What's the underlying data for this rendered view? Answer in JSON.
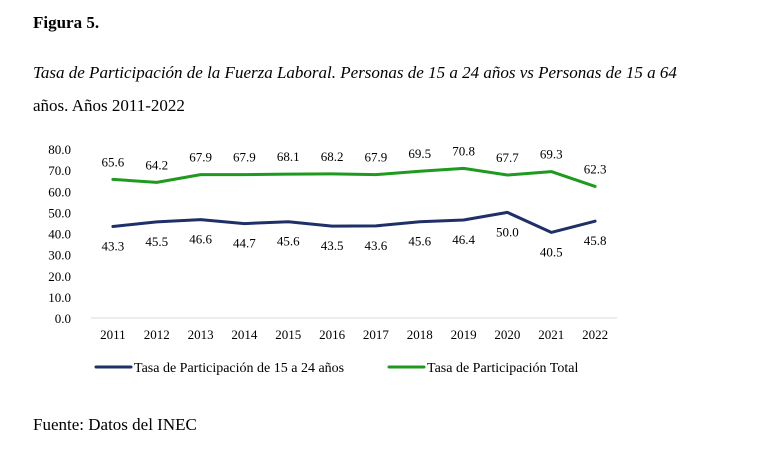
{
  "figure": {
    "label": "Figura 5.",
    "title_italic": "Tasa de Participación de la Fuerza Laboral. Personas de 15 a 24 años vs Personas de 15 a 64",
    "title_rest": "años. Años 2011-2022",
    "source": "Fuente: Datos del INEC"
  },
  "chart_data": {
    "type": "line",
    "title": "Tasa de Participación de la Fuerza Laboral. Personas de 15 a 24 años vs Personas de 15 a 64 años. Años 2011-2022",
    "xlabel": "",
    "ylabel": "",
    "categories": [
      "2011",
      "2012",
      "2013",
      "2014",
      "2015",
      "2016",
      "2017",
      "2018",
      "2019",
      "2020",
      "2021",
      "2022"
    ],
    "ylim": [
      0,
      80
    ],
    "yticks": [
      "0.0",
      "10.0",
      "20.0",
      "30.0",
      "40.0",
      "50.0",
      "60.0",
      "70.0",
      "80.0"
    ],
    "grid": false,
    "legend": "bottom",
    "series": [
      {
        "name": "Tasa de Participación de 15 a 24 años",
        "color": "#1f3068",
        "label_position": "below",
        "values": [
          43.3,
          45.5,
          46.6,
          44.7,
          45.6,
          43.5,
          43.6,
          45.6,
          46.4,
          50.0,
          40.5,
          45.8
        ],
        "labels": [
          "43.3",
          "45.5",
          "46.6",
          "44.7",
          "45.6",
          "43.5",
          "43.6",
          "45.6",
          "46.4",
          "50.0",
          "40.5",
          "45.8"
        ]
      },
      {
        "name": "Tasa de Participación Total",
        "color": "#1e9a1e",
        "label_position": "above",
        "values": [
          65.6,
          64.2,
          67.9,
          67.9,
          68.1,
          68.2,
          67.9,
          69.5,
          70.8,
          67.7,
          69.3,
          62.3
        ],
        "labels": [
          "65.6",
          "64.2",
          "67.9",
          "67.9",
          "68.1",
          "68.2",
          "67.9",
          "69.5",
          "70.8",
          "67.7",
          "69.3",
          "62.3"
        ]
      }
    ]
  }
}
